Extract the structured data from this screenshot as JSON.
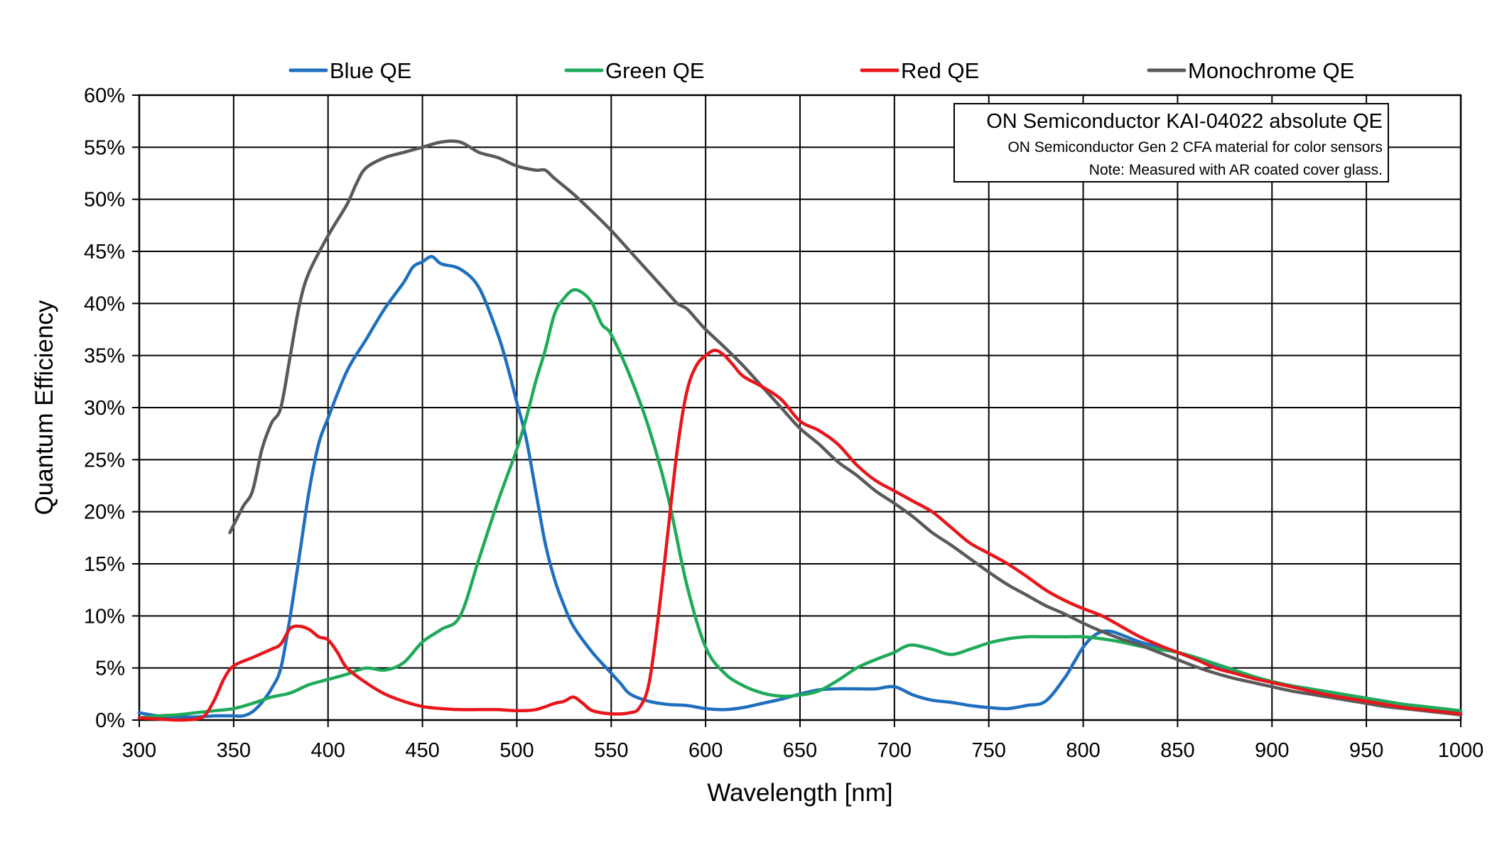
{
  "chart_data": {
    "type": "line",
    "title": "",
    "xlabel": "Wavelength [nm]",
    "ylabel": "Quantum Efficiency",
    "xlim": [
      300,
      1000
    ],
    "ylim": [
      0,
      60
    ],
    "xticks": [
      300,
      350,
      400,
      450,
      500,
      550,
      600,
      650,
      700,
      750,
      800,
      850,
      900,
      950,
      1000
    ],
    "yticks": [
      0,
      5,
      10,
      15,
      20,
      25,
      30,
      35,
      40,
      45,
      50,
      55,
      60
    ],
    "xtick_labels": [
      "300",
      "350",
      "400",
      "450",
      "500",
      "550",
      "600",
      "650",
      "700",
      "750",
      "800",
      "850",
      "900",
      "950",
      "1000"
    ],
    "ytick_labels": [
      "0%",
      "5%",
      "10%",
      "15%",
      "20%",
      "25%",
      "30%",
      "35%",
      "40%",
      "45%",
      "50%",
      "55%",
      "60%"
    ],
    "grid": true,
    "legend_position": "top",
    "annotation": {
      "title": "ON Semiconductor KAI-04022 absolute QE",
      "line1": "ON Semiconductor Gen 2 CFA material for color sensors",
      "line2": "Note: Measured with AR coated cover glass."
    },
    "series": [
      {
        "name": "Blue QE",
        "color": "#1f6fbf",
        "x": [
          300,
          310,
          320,
          330,
          340,
          350,
          355,
          360,
          365,
          370,
          375,
          380,
          385,
          390,
          395,
          400,
          410,
          420,
          430,
          440,
          445,
          450,
          455,
          460,
          470,
          480,
          490,
          495,
          500,
          505,
          510,
          515,
          520,
          525,
          530,
          540,
          550,
          555,
          560,
          570,
          580,
          590,
          600,
          610,
          620,
          630,
          640,
          650,
          660,
          670,
          680,
          690,
          700,
          710,
          720,
          730,
          740,
          750,
          760,
          770,
          780,
          790,
          795,
          800,
          805,
          810,
          815,
          820,
          830,
          840,
          850,
          860,
          870,
          880,
          890,
          900,
          910,
          920,
          930,
          940,
          950,
          960,
          970,
          980,
          990,
          1000
        ],
        "y": [
          0.7,
          0.4,
          0.3,
          0.3,
          0.4,
          0.4,
          0.4,
          0.8,
          1.7,
          3,
          5,
          10,
          16,
          22,
          26.5,
          29,
          33.5,
          36.5,
          39.5,
          42,
          43.5,
          44,
          44.5,
          43.8,
          43.3,
          41.5,
          37,
          34,
          30.5,
          27,
          22,
          17,
          13.5,
          11,
          9,
          6.5,
          4.5,
          3.5,
          2.5,
          1.8,
          1.5,
          1.4,
          1.1,
          1,
          1.2,
          1.6,
          2,
          2.5,
          2.9,
          3,
          3,
          3,
          3.2,
          2.4,
          1.9,
          1.7,
          1.4,
          1.2,
          1.1,
          1.4,
          1.8,
          4,
          5.5,
          7,
          8,
          8.5,
          8.5,
          8.2,
          7.5,
          7,
          6.5,
          5.8,
          5.2,
          4.6,
          4.1,
          3.7,
          3.3,
          3,
          2.7,
          2.4,
          2.1,
          1.8,
          1.5,
          1.3,
          1,
          0.8
        ]
      },
      {
        "name": "Green QE",
        "color": "#1faa59",
        "x": [
          300,
          310,
          320,
          330,
          340,
          350,
          360,
          370,
          380,
          390,
          400,
          410,
          420,
          430,
          440,
          450,
          460,
          470,
          480,
          490,
          500,
          505,
          510,
          515,
          520,
          525,
          530,
          535,
          540,
          545,
          550,
          560,
          570,
          580,
          590,
          600,
          610,
          620,
          630,
          640,
          650,
          660,
          670,
          680,
          690,
          700,
          705,
          710,
          720,
          730,
          740,
          750,
          760,
          770,
          780,
          790,
          800,
          810,
          820,
          830,
          840,
          850,
          860,
          870,
          880,
          890,
          900,
          910,
          920,
          930,
          940,
          950,
          960,
          970,
          980,
          990,
          1000
        ],
        "y": [
          0.2,
          0.4,
          0.5,
          0.7,
          0.9,
          1.1,
          1.6,
          2.2,
          2.6,
          3.4,
          3.9,
          4.4,
          5,
          4.8,
          5.5,
          7.5,
          8.7,
          10,
          15.5,
          21,
          26,
          29,
          32.5,
          35.5,
          39,
          40.5,
          41.3,
          41,
          40,
          38,
          37,
          33,
          28,
          21.5,
          13,
          7,
          4.5,
          3.3,
          2.6,
          2.3,
          2.4,
          2.8,
          3.8,
          5,
          5.8,
          6.5,
          7,
          7.2,
          6.8,
          6.3,
          6.8,
          7.4,
          7.8,
          8,
          8,
          8,
          8,
          7.8,
          7.5,
          7.1,
          6.8,
          6.5,
          6,
          5.4,
          4.8,
          4.2,
          3.7,
          3.3,
          3,
          2.7,
          2.4,
          2.1,
          1.8,
          1.5,
          1.3,
          1.1,
          0.9
        ]
      },
      {
        "name": "Red QE",
        "color": "#e8161b",
        "x": [
          300,
          310,
          320,
          330,
          335,
          340,
          345,
          350,
          360,
          370,
          375,
          380,
          385,
          390,
          395,
          400,
          405,
          410,
          420,
          430,
          440,
          450,
          460,
          470,
          480,
          490,
          500,
          510,
          520,
          525,
          530,
          535,
          540,
          550,
          560,
          565,
          570,
          575,
          580,
          585,
          590,
          595,
          600,
          605,
          610,
          615,
          620,
          630,
          640,
          650,
          660,
          670,
          680,
          690,
          700,
          710,
          720,
          730,
          740,
          750,
          760,
          770,
          780,
          790,
          800,
          810,
          820,
          830,
          840,
          850,
          860,
          870,
          880,
          890,
          900,
          910,
          920,
          930,
          940,
          950,
          960,
          970,
          980,
          990,
          1000
        ],
        "y": [
          0.2,
          0.1,
          0,
          0.1,
          0.5,
          2,
          4,
          5.2,
          6,
          6.8,
          7.3,
          8.8,
          9,
          8.7,
          8,
          7.7,
          6.5,
          5,
          3.6,
          2.5,
          1.8,
          1.3,
          1.1,
          1,
          1,
          1,
          0.9,
          1,
          1.6,
          1.8,
          2.2,
          1.6,
          0.9,
          0.6,
          0.7,
          1.2,
          3.5,
          10,
          18,
          26,
          31.5,
          34,
          35,
          35.5,
          35,
          34,
          33,
          32,
          30.8,
          28.7,
          27.8,
          26.5,
          24.5,
          23,
          22,
          21,
          20,
          18.5,
          17,
          16,
          15,
          13.8,
          12.5,
          11.5,
          10.7,
          10,
          9,
          8,
          7.2,
          6.5,
          5.8,
          5,
          4.5,
          4,
          3.6,
          3.2,
          2.8,
          2.4,
          2.1,
          1.8,
          1.5,
          1.2,
          1,
          0.8,
          0.6
        ]
      },
      {
        "name": "Monochrome QE",
        "color": "#595959",
        "x": [
          348,
          355,
          360,
          365,
          370,
          375,
          380,
          385,
          390,
          400,
          410,
          415,
          420,
          430,
          440,
          450,
          460,
          470,
          480,
          490,
          500,
          510,
          515,
          520,
          530,
          540,
          550,
          560,
          570,
          580,
          585,
          590,
          595,
          600,
          610,
          620,
          630,
          640,
          650,
          660,
          670,
          680,
          690,
          700,
          710,
          720,
          730,
          740,
          750,
          760,
          770,
          780,
          790,
          800,
          810,
          820,
          830,
          840,
          850,
          860,
          870,
          880,
          890,
          900,
          910,
          920,
          930,
          940,
          950,
          960,
          970,
          980,
          990,
          1000
        ],
        "y": [
          18,
          20.5,
          22,
          26,
          28.5,
          30,
          35,
          40,
          43,
          46.5,
          49.5,
          51.5,
          53,
          54,
          54.5,
          55,
          55.5,
          55.5,
          54.5,
          54,
          53.2,
          52.8,
          52.8,
          52,
          50.5,
          48.8,
          47,
          45,
          43,
          41,
          40,
          39.5,
          38.5,
          37.5,
          35.8,
          34,
          32,
          30,
          28,
          26.5,
          24.8,
          23.5,
          22,
          20.8,
          19.5,
          18,
          16.8,
          15.5,
          14.2,
          13,
          12,
          11,
          10.2,
          9.3,
          8.5,
          7.8,
          7.2,
          6.5,
          5.8,
          5.1,
          4.5,
          4,
          3.6,
          3.2,
          2.8,
          2.5,
          2.2,
          1.9,
          1.6,
          1.3,
          1.1,
          0.9,
          0.7,
          0.5
        ]
      }
    ]
  }
}
